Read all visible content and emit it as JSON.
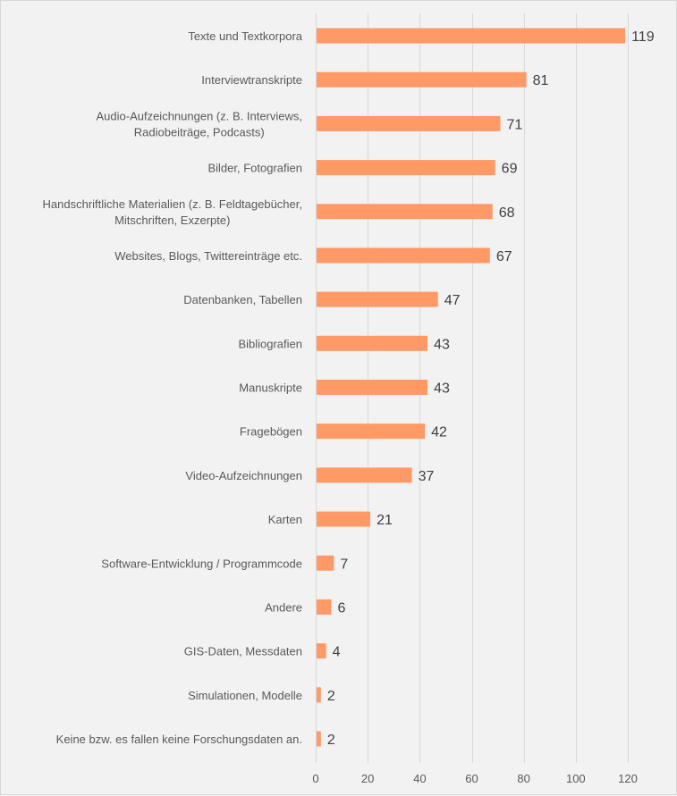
{
  "chart_data": {
    "type": "bar",
    "orientation": "horizontal",
    "title": "",
    "xlabel": "",
    "ylabel": "",
    "xlim": [
      0,
      120
    ],
    "x_ticks": [
      0,
      20,
      40,
      60,
      80,
      100,
      120
    ],
    "grid": true,
    "legend": "none",
    "bar_color": "#ff9966",
    "categories": [
      [
        "Texte und Textkorpora"
      ],
      [
        "Interviewtranskripte"
      ],
      [
        "Audio-Aufzeichnungen (z. B. Interviews,",
        "Radiobeiträge, Podcasts)"
      ],
      [
        "Bilder, Fotografien"
      ],
      [
        "Handschriftliche Materialien (z. B. Feldtagebücher,",
        "Mitschriften, Exzerpte)"
      ],
      [
        "Websites, Blogs, Twittereinträge etc."
      ],
      [
        "Datenbanken, Tabellen"
      ],
      [
        "Bibliografien"
      ],
      [
        "Manuskripte"
      ],
      [
        "Fragebögen"
      ],
      [
        "Video-Aufzeichnungen"
      ],
      [
        "Karten"
      ],
      [
        "Software-Entwicklung / Programmcode"
      ],
      [
        "Andere"
      ],
      [
        "GIS-Daten, Messdaten"
      ],
      [
        "Simulationen, Modelle"
      ],
      [
        "Keine bzw. es fallen keine Forschungsdaten an."
      ]
    ],
    "values": [
      119,
      81,
      71,
      69,
      68,
      67,
      47,
      43,
      43,
      42,
      37,
      21,
      7,
      6,
      4,
      2,
      2
    ]
  }
}
